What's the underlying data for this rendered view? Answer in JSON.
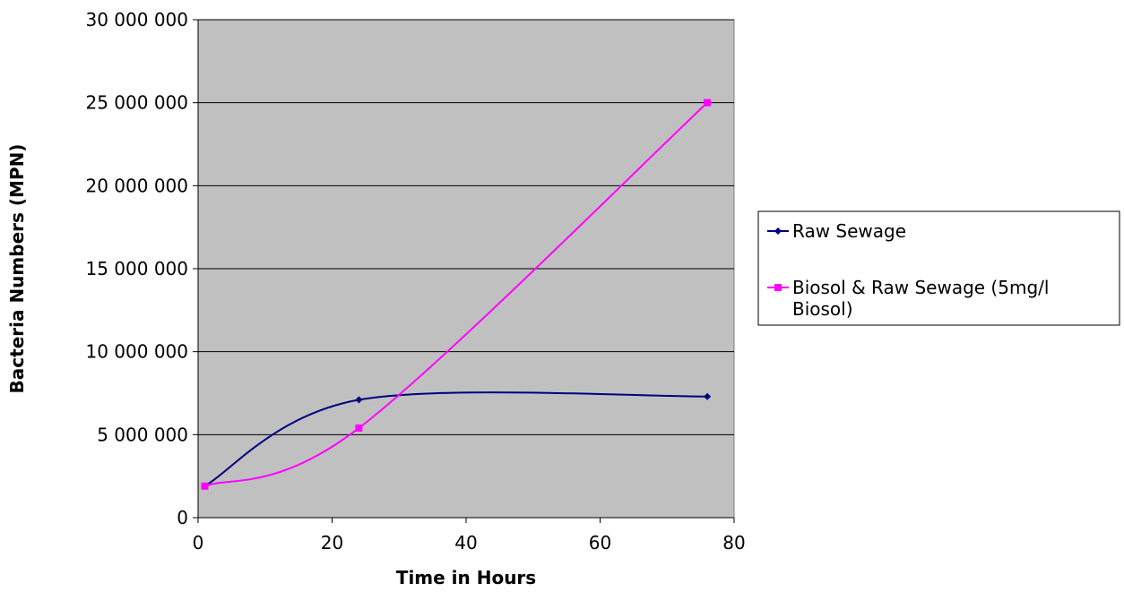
{
  "chart_data": {
    "type": "line",
    "title": "",
    "xlabel": "Time in Hours",
    "ylabel": "Bacteria Numbers (MPN)",
    "xlim": [
      0,
      80
    ],
    "ylim": [
      0,
      30000000
    ],
    "x_ticks": [
      0,
      20,
      40,
      60,
      80
    ],
    "y_ticks": [
      0,
      5000000,
      10000000,
      15000000,
      20000000,
      25000000,
      30000000
    ],
    "x_tick_labels": [
      "0",
      "20",
      "40",
      "60",
      "80"
    ],
    "y_tick_labels": [
      "0",
      "5 000 000",
      "10 000 000",
      "15 000 000",
      "20 000 000",
      "25 000 000",
      "30 000 000"
    ],
    "grid": "horizontal",
    "smoothed": true,
    "plot_background": "#c0c0c0",
    "legend_position": "right",
    "series": [
      {
        "name": "Raw Sewage",
        "color": "#000080",
        "marker": "diamond",
        "x": [
          1,
          24,
          76
        ],
        "y": [
          1900000,
          7100000,
          7300000
        ]
      },
      {
        "name": "Biosol & Raw Sewage (5mg/l Biosol)",
        "legend_lines": [
          "Biosol & Raw Sewage (5mg/l",
          "Biosol)"
        ],
        "color": "#ff00ff",
        "marker": "square",
        "x": [
          1,
          24,
          76
        ],
        "y": [
          1900000,
          5400000,
          25000000
        ]
      }
    ]
  }
}
